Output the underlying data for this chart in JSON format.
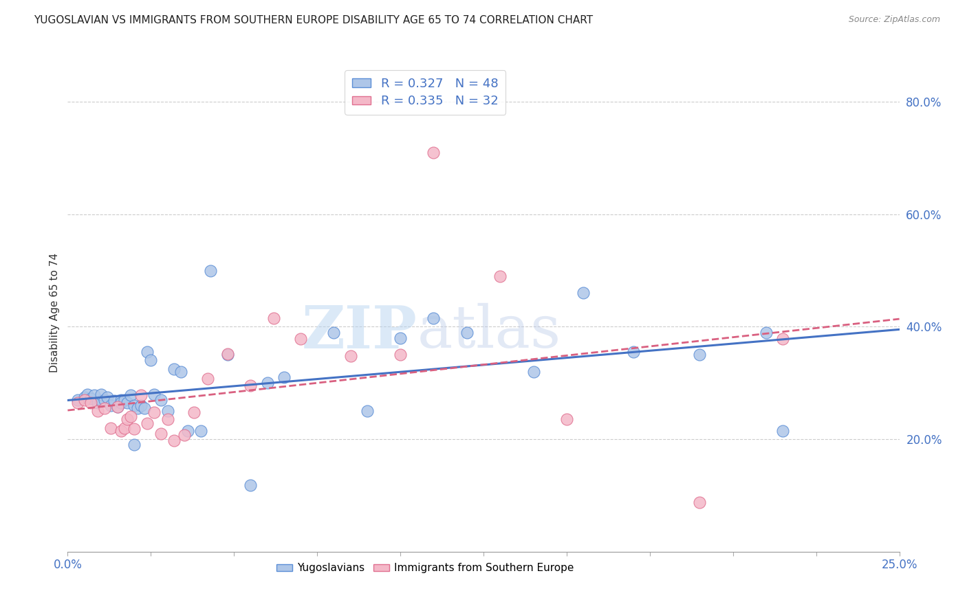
{
  "title": "YUGOSLAVIAN VS IMMIGRANTS FROM SOUTHERN EUROPE DISABILITY AGE 65 TO 74 CORRELATION CHART",
  "source": "Source: ZipAtlas.com",
  "ylabel": "Disability Age 65 to 74",
  "xlim": [
    0.0,
    0.25
  ],
  "ylim": [
    0.0,
    0.85
  ],
  "xticks": [
    0.0,
    0.025,
    0.05,
    0.075,
    0.1,
    0.125,
    0.15,
    0.175,
    0.2,
    0.225,
    0.25
  ],
  "xticklabels": [
    "0.0%",
    "",
    "",
    "",
    "",
    "",
    "",
    "",
    "",
    "",
    "25.0%"
  ],
  "yticks_right": [
    0.2,
    0.4,
    0.6,
    0.8
  ],
  "ytick_labels_right": [
    "20.0%",
    "40.0%",
    "60.0%",
    "80.0%"
  ],
  "r1": 0.327,
  "n1": 48,
  "r2": 0.335,
  "n2": 32,
  "color1": "#aec6e8",
  "color2": "#f4b8c8",
  "edge_color1": "#5b8ed6",
  "edge_color2": "#e07090",
  "line_color1": "#4472c4",
  "line_color2": "#d96080",
  "watermark_zip": "ZIP",
  "watermark_atlas": "atlas",
  "yug_x": [
    0.003,
    0.005,
    0.006,
    0.007,
    0.008,
    0.009,
    0.01,
    0.01,
    0.011,
    0.012,
    0.013,
    0.014,
    0.015,
    0.016,
    0.016,
    0.017,
    0.018,
    0.019,
    0.02,
    0.02,
    0.021,
    0.022,
    0.023,
    0.024,
    0.025,
    0.026,
    0.028,
    0.03,
    0.032,
    0.034,
    0.036,
    0.04,
    0.043,
    0.048,
    0.055,
    0.06,
    0.065,
    0.08,
    0.09,
    0.1,
    0.11,
    0.12,
    0.14,
    0.155,
    0.17,
    0.19,
    0.21,
    0.215
  ],
  "yug_y": [
    0.27,
    0.275,
    0.28,
    0.272,
    0.278,
    0.265,
    0.268,
    0.28,
    0.27,
    0.275,
    0.26,
    0.268,
    0.258,
    0.27,
    0.265,
    0.27,
    0.265,
    0.278,
    0.19,
    0.26,
    0.255,
    0.26,
    0.255,
    0.355,
    0.34,
    0.28,
    0.27,
    0.25,
    0.325,
    0.32,
    0.215,
    0.215,
    0.5,
    0.35,
    0.118,
    0.3,
    0.31,
    0.39,
    0.25,
    0.38,
    0.415,
    0.39,
    0.32,
    0.46,
    0.355,
    0.35,
    0.39,
    0.215
  ],
  "imm_x": [
    0.003,
    0.005,
    0.007,
    0.009,
    0.011,
    0.013,
    0.015,
    0.016,
    0.017,
    0.018,
    0.019,
    0.02,
    0.022,
    0.024,
    0.026,
    0.028,
    0.03,
    0.032,
    0.035,
    0.038,
    0.042,
    0.048,
    0.055,
    0.062,
    0.07,
    0.085,
    0.1,
    0.11,
    0.13,
    0.15,
    0.19,
    0.215
  ],
  "imm_y": [
    0.265,
    0.27,
    0.265,
    0.25,
    0.255,
    0.22,
    0.258,
    0.215,
    0.22,
    0.235,
    0.24,
    0.218,
    0.278,
    0.228,
    0.248,
    0.21,
    0.235,
    0.198,
    0.208,
    0.248,
    0.308,
    0.352,
    0.295,
    0.415,
    0.378,
    0.348,
    0.35,
    0.71,
    0.49,
    0.235,
    0.088,
    0.378
  ]
}
